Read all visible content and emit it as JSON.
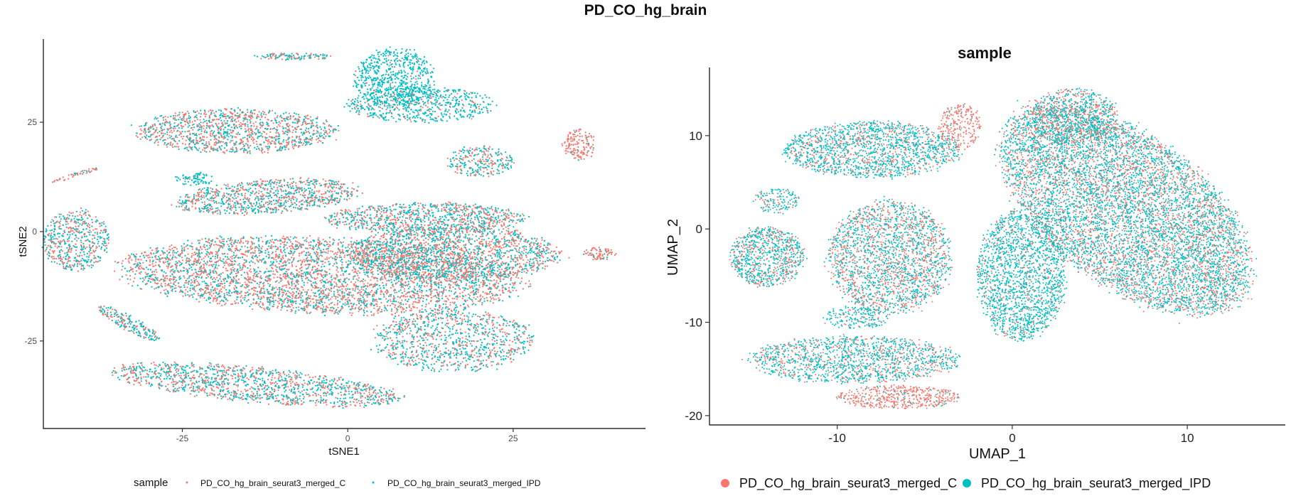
{
  "figure": {
    "title": "PD_CO_hg_brain"
  },
  "colors": {
    "C": "#F8766D",
    "IPD": "#00BFC4"
  },
  "chart_data": [
    {
      "type": "scatter",
      "title": "",
      "xlabel": "tSNE1",
      "ylabel": "tSNE2",
      "xlim": [
        -46,
        45
      ],
      "ylim": [
        -45,
        44
      ],
      "xticks": [
        -25,
        0,
        25
      ],
      "yticks": [
        -25,
        0,
        25
      ],
      "grid": false,
      "legend": {
        "position": "bottom",
        "title": "sample",
        "entries": [
          "PD_CO_hg_brain_seurat3_merged_C",
          "PD_CO_hg_brain_seurat3_merged_IPD"
        ]
      },
      "series": [
        {
          "name": "PD_CO_hg_brain_seurat3_merged_C",
          "color": "#F8766D"
        },
        {
          "name": "PD_CO_hg_brain_seurat3_merged_IPD",
          "color": "#00BFC4"
        }
      ],
      "clusters": [
        {
          "cx": -4,
          "cy": -10,
          "rx": 30,
          "ry": 8.5,
          "rot": -4,
          "fracC": 0.58,
          "n": 4200
        },
        {
          "cx": 16,
          "cy": -5,
          "rx": 16,
          "ry": 6,
          "rot": 0,
          "fracC": 0.5,
          "n": 1700
        },
        {
          "cx": 12,
          "cy": 3,
          "rx": 15,
          "ry": 3.5,
          "rot": 0,
          "fracC": 0.5,
          "n": 1000
        },
        {
          "cx": -12,
          "cy": 8,
          "rx": 14,
          "ry": 3.8,
          "rot": 6,
          "fracC": 0.48,
          "n": 1000
        },
        {
          "cx": -17,
          "cy": 23,
          "rx": 15,
          "ry": 5,
          "rot": 0,
          "fracC": 0.52,
          "n": 1300
        },
        {
          "cx": 7,
          "cy": 35,
          "rx": 6,
          "ry": 7,
          "rot": 0,
          "fracC": 0.06,
          "n": 700
        },
        {
          "cx": 11,
          "cy": 29,
          "rx": 11,
          "ry": 4,
          "rot": 0,
          "fracC": 0.15,
          "n": 600
        },
        {
          "cx": 20,
          "cy": 16,
          "rx": 5,
          "ry": 3.5,
          "rot": 0,
          "fracC": 0.4,
          "n": 260
        },
        {
          "cx": -8,
          "cy": 40,
          "rx": 6,
          "ry": 0.8,
          "rot": 0,
          "fracC": 0.4,
          "n": 120
        },
        {
          "cx": -41,
          "cy": 13,
          "rx": 4,
          "ry": 0.5,
          "rot": 25,
          "fracC": 0.7,
          "n": 50
        },
        {
          "cx": 35,
          "cy": 20,
          "rx": 2.5,
          "ry": 3.5,
          "rot": 0,
          "fracC": 0.95,
          "n": 150
        },
        {
          "cx": -23,
          "cy": 12,
          "rx": 3,
          "ry": 1.5,
          "rot": 0,
          "fracC": 0.1,
          "n": 80
        },
        {
          "cx": 38,
          "cy": -5,
          "rx": 2.5,
          "ry": 1.5,
          "rot": 0,
          "fracC": 0.9,
          "n": 80
        },
        {
          "cx": -41,
          "cy": -2,
          "rx": 5,
          "ry": 7,
          "rot": 0,
          "fracC": 0.45,
          "n": 550
        },
        {
          "cx": -33,
          "cy": -21,
          "rx": 6,
          "ry": 1.5,
          "rot": -40,
          "fracC": 0.4,
          "n": 200
        },
        {
          "cx": -14,
          "cy": -35,
          "rx": 22,
          "ry": 4,
          "rot": -8,
          "fracC": 0.45,
          "n": 1400
        },
        {
          "cx": 16,
          "cy": -25,
          "rx": 12,
          "ry": 7,
          "rot": 0,
          "fracC": 0.4,
          "n": 1000
        }
      ]
    },
    {
      "type": "scatter",
      "title": "sample",
      "xlabel": "UMAP_1",
      "ylabel": "UMAP_2",
      "xlim": [
        -17.3,
        15.6
      ],
      "ylim": [
        -21,
        17.3
      ],
      "xticks": [
        -10,
        0,
        10
      ],
      "yticks": [
        -20,
        -10,
        0,
        10
      ],
      "grid": false,
      "legend": {
        "position": "bottom",
        "title": "",
        "entries": [
          "PD_CO_hg_brain_seurat3_merged_C",
          "PD_CO_hg_brain_seurat3_merged_IPD"
        ]
      },
      "series": [
        {
          "name": "PD_CO_hg_brain_seurat3_merged_C",
          "color": "#F8766D"
        },
        {
          "name": "PD_CO_hg_brain_seurat3_merged_IPD",
          "color": "#00BFC4"
        }
      ],
      "clusters": [
        {
          "cx": 6.5,
          "cy": 2,
          "rx": 5.5,
          "ry": 12,
          "rot": 25,
          "fracC": 0.35,
          "n": 8000
        },
        {
          "cx": 3.5,
          "cy": 12,
          "rx": 2.5,
          "ry": 3,
          "rot": 0,
          "fracC": 0.45,
          "n": 900
        },
        {
          "cx": -8,
          "cy": 8.5,
          "rx": 5,
          "ry": 3,
          "rot": 0,
          "fracC": 0.25,
          "n": 1700
        },
        {
          "cx": -3,
          "cy": 11,
          "rx": 1.2,
          "ry": 2.5,
          "rot": 0,
          "fracC": 0.95,
          "n": 250
        },
        {
          "cx": -13.5,
          "cy": 3,
          "rx": 1.3,
          "ry": 1.4,
          "rot": 0,
          "fracC": 0.3,
          "n": 150
        },
        {
          "cx": -14,
          "cy": -3,
          "rx": 2.1,
          "ry": 3.2,
          "rot": 0,
          "fracC": 0.3,
          "n": 900
        },
        {
          "cx": -7,
          "cy": -3,
          "rx": 3.5,
          "ry": 6,
          "rot": 0,
          "fracC": 0.4,
          "n": 2200
        },
        {
          "cx": 0.5,
          "cy": -5,
          "rx": 2.5,
          "ry": 7,
          "rot": 0,
          "fracC": 0.15,
          "n": 1900
        },
        {
          "cx": -9,
          "cy": -9.5,
          "rx": 2,
          "ry": 1.2,
          "rot": 0,
          "fracC": 0.2,
          "n": 200
        },
        {
          "cx": -9,
          "cy": -14,
          "rx": 6,
          "ry": 2.5,
          "rot": 0,
          "fracC": 0.3,
          "n": 1500
        },
        {
          "cx": -6.5,
          "cy": -18,
          "rx": 3.5,
          "ry": 1.3,
          "rot": 0,
          "fracC": 0.9,
          "n": 500
        }
      ]
    }
  ]
}
